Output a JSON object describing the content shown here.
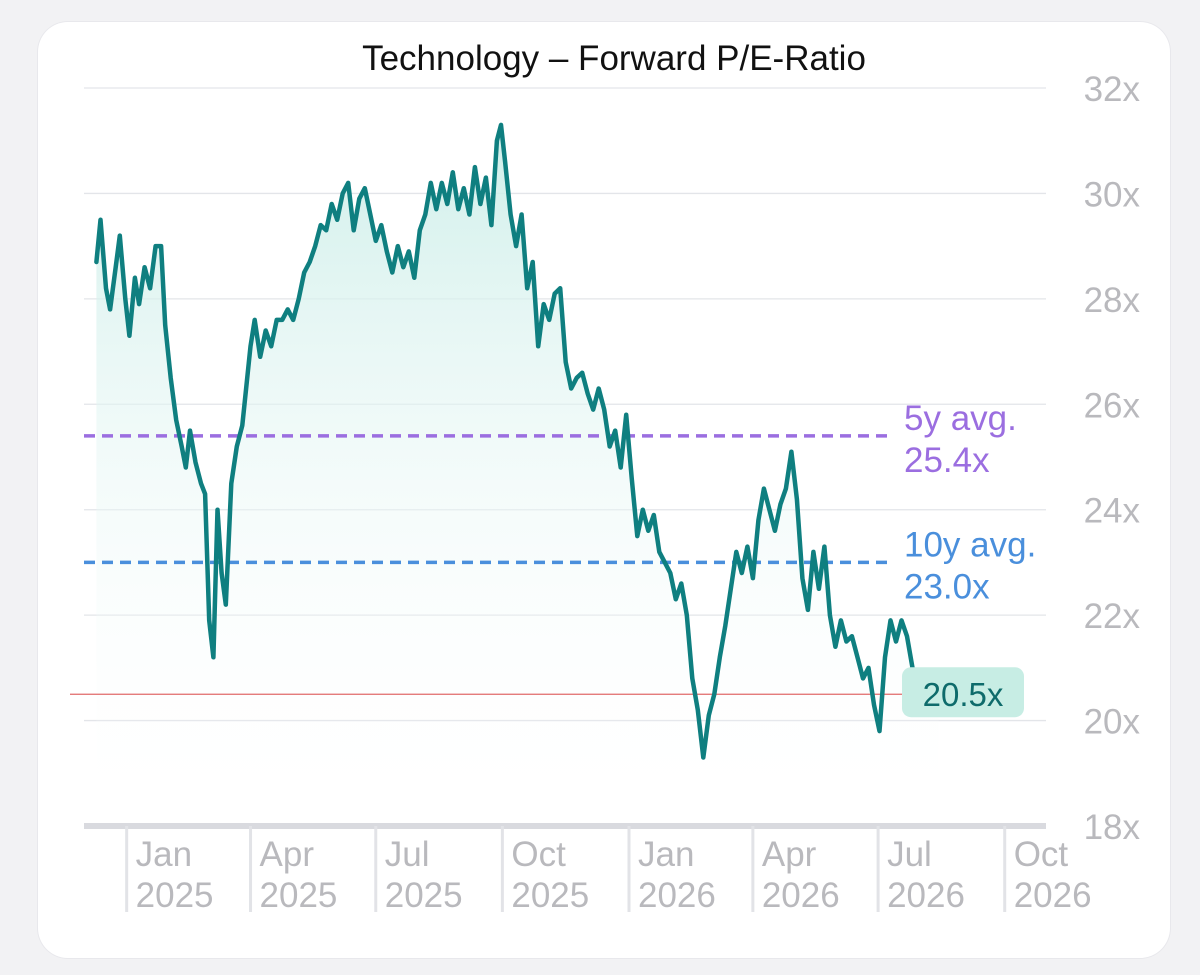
{
  "chart_data": {
    "type": "line",
    "title": "Technology – Forward P/E-Ratio",
    "y_ticks": [
      "32x",
      "30x",
      "28x",
      "26x",
      "24x",
      "22x",
      "20x",
      "18x"
    ],
    "y_tick_values": [
      32,
      30,
      28,
      26,
      24,
      22,
      20,
      18
    ],
    "ylim": [
      18,
      32
    ],
    "x_range": [
      "2024-12-01",
      "2026-10-31"
    ],
    "x_ticks": [
      {
        "date": "2025-01-01",
        "month": "Jan",
        "year": "2025"
      },
      {
        "date": "2025-04-01",
        "month": "Apr",
        "year": "2025"
      },
      {
        "date": "2025-07-01",
        "month": "Jul",
        "year": "2025"
      },
      {
        "date": "2025-10-01",
        "month": "Oct",
        "year": "2025"
      },
      {
        "date": "2026-01-01",
        "month": "Jan",
        "year": "2026"
      },
      {
        "date": "2026-04-01",
        "month": "Apr",
        "year": "2026"
      },
      {
        "date": "2026-07-01",
        "month": "Jul",
        "year": "2026"
      },
      {
        "date": "2026-10-01",
        "month": "Oct",
        "year": "2026"
      }
    ],
    "grid": true,
    "series": [
      {
        "color": "#0f7f80",
        "points": [
          [
            "2024-12-10",
            28.7
          ],
          [
            "2024-12-13",
            29.5
          ],
          [
            "2024-12-17",
            28.2
          ],
          [
            "2024-12-20",
            27.8
          ],
          [
            "2024-12-24",
            28.6
          ],
          [
            "2024-12-27",
            29.2
          ],
          [
            "2024-12-31",
            28.0
          ],
          [
            "2025-01-03",
            27.3
          ],
          [
            "2025-01-07",
            28.4
          ],
          [
            "2025-01-10",
            27.9
          ],
          [
            "2025-01-14",
            28.6
          ],
          [
            "2025-01-18",
            28.2
          ],
          [
            "2025-01-22",
            29.0
          ],
          [
            "2025-01-26",
            29.0
          ],
          [
            "2025-01-29",
            27.5
          ],
          [
            "2025-02-02",
            26.5
          ],
          [
            "2025-02-06",
            25.7
          ],
          [
            "2025-02-10",
            25.2
          ],
          [
            "2025-02-13",
            24.8
          ],
          [
            "2025-02-16",
            25.5
          ],
          [
            "2025-02-20",
            24.9
          ],
          [
            "2025-02-24",
            24.5
          ],
          [
            "2025-02-27",
            24.3
          ],
          [
            "2025-03-02",
            21.9
          ],
          [
            "2025-03-05",
            21.2
          ],
          [
            "2025-03-08",
            24.0
          ],
          [
            "2025-03-11",
            22.8
          ],
          [
            "2025-03-14",
            22.2
          ],
          [
            "2025-03-18",
            24.5
          ],
          [
            "2025-03-22",
            25.2
          ],
          [
            "2025-03-26",
            25.6
          ],
          [
            "2025-04-01",
            27.1
          ],
          [
            "2025-04-04",
            27.6
          ],
          [
            "2025-04-08",
            26.9
          ],
          [
            "2025-04-12",
            27.4
          ],
          [
            "2025-04-16",
            27.1
          ],
          [
            "2025-04-20",
            27.6
          ],
          [
            "2025-04-24",
            27.6
          ],
          [
            "2025-04-28",
            27.8
          ],
          [
            "2025-05-02",
            27.6
          ],
          [
            "2025-05-06",
            28.0
          ],
          [
            "2025-05-10",
            28.5
          ],
          [
            "2025-05-14",
            28.7
          ],
          [
            "2025-05-18",
            29.0
          ],
          [
            "2025-05-22",
            29.4
          ],
          [
            "2025-05-26",
            29.3
          ],
          [
            "2025-05-30",
            29.8
          ],
          [
            "2025-06-03",
            29.5
          ],
          [
            "2025-06-07",
            30.0
          ],
          [
            "2025-06-11",
            30.2
          ],
          [
            "2025-06-15",
            29.3
          ],
          [
            "2025-06-19",
            29.9
          ],
          [
            "2025-06-23",
            30.1
          ],
          [
            "2025-06-27",
            29.6
          ],
          [
            "2025-07-01",
            29.1
          ],
          [
            "2025-07-05",
            29.4
          ],
          [
            "2025-07-09",
            28.9
          ],
          [
            "2025-07-13",
            28.5
          ],
          [
            "2025-07-17",
            29.0
          ],
          [
            "2025-07-21",
            28.6
          ],
          [
            "2025-07-25",
            28.9
          ],
          [
            "2025-07-29",
            28.4
          ],
          [
            "2025-08-02",
            29.3
          ],
          [
            "2025-08-06",
            29.6
          ],
          [
            "2025-08-10",
            30.2
          ],
          [
            "2025-08-14",
            29.7
          ],
          [
            "2025-08-18",
            30.2
          ],
          [
            "2025-08-22",
            29.8
          ],
          [
            "2025-08-26",
            30.4
          ],
          [
            "2025-08-30",
            29.7
          ],
          [
            "2025-09-03",
            30.1
          ],
          [
            "2025-09-07",
            29.6
          ],
          [
            "2025-09-11",
            30.5
          ],
          [
            "2025-09-15",
            29.8
          ],
          [
            "2025-09-19",
            30.3
          ],
          [
            "2025-09-23",
            29.4
          ],
          [
            "2025-09-27",
            31.0
          ],
          [
            "2025-09-30",
            31.3
          ],
          [
            "2025-10-03",
            30.6
          ],
          [
            "2025-10-07",
            29.6
          ],
          [
            "2025-10-11",
            29.0
          ],
          [
            "2025-10-15",
            29.6
          ],
          [
            "2025-10-19",
            28.2
          ],
          [
            "2025-10-23",
            28.7
          ],
          [
            "2025-10-27",
            27.1
          ],
          [
            "2025-10-31",
            27.9
          ],
          [
            "2025-11-04",
            27.6
          ],
          [
            "2025-11-08",
            28.1
          ],
          [
            "2025-11-12",
            28.2
          ],
          [
            "2025-11-16",
            26.8
          ],
          [
            "2025-11-20",
            26.3
          ],
          [
            "2025-11-24",
            26.5
          ],
          [
            "2025-11-28",
            26.6
          ],
          [
            "2025-12-02",
            26.2
          ],
          [
            "2025-12-06",
            25.9
          ],
          [
            "2025-12-10",
            26.3
          ],
          [
            "2025-12-14",
            25.9
          ],
          [
            "2025-12-18",
            25.2
          ],
          [
            "2025-12-22",
            25.5
          ],
          [
            "2025-12-26",
            24.8
          ],
          [
            "2025-12-30",
            25.8
          ],
          [
            "2026-01-03",
            24.6
          ],
          [
            "2026-01-07",
            23.5
          ],
          [
            "2026-01-11",
            24.0
          ],
          [
            "2026-01-15",
            23.6
          ],
          [
            "2026-01-19",
            23.9
          ],
          [
            "2026-01-23",
            23.2
          ],
          [
            "2026-01-27",
            23.0
          ],
          [
            "2026-01-31",
            22.8
          ],
          [
            "2026-02-04",
            22.3
          ],
          [
            "2026-02-08",
            22.6
          ],
          [
            "2026-02-12",
            22.0
          ],
          [
            "2026-02-16",
            20.8
          ],
          [
            "2026-02-20",
            20.2
          ],
          [
            "2026-02-24",
            19.3
          ],
          [
            "2026-02-28",
            20.1
          ],
          [
            "2026-03-04",
            20.5
          ],
          [
            "2026-03-08",
            21.2
          ],
          [
            "2026-03-12",
            21.8
          ],
          [
            "2026-03-16",
            22.5
          ],
          [
            "2026-03-20",
            23.2
          ],
          [
            "2026-03-24",
            22.8
          ],
          [
            "2026-03-28",
            23.3
          ],
          [
            "2026-04-01",
            22.7
          ],
          [
            "2026-04-05",
            23.8
          ],
          [
            "2026-04-09",
            24.4
          ],
          [
            "2026-04-13",
            24.0
          ],
          [
            "2026-04-17",
            23.6
          ],
          [
            "2026-04-21",
            24.1
          ],
          [
            "2026-04-25",
            24.4
          ],
          [
            "2026-04-29",
            25.1
          ],
          [
            "2026-05-03",
            24.2
          ],
          [
            "2026-05-07",
            22.7
          ],
          [
            "2026-05-11",
            22.1
          ],
          [
            "2026-05-15",
            23.2
          ],
          [
            "2026-05-19",
            22.5
          ],
          [
            "2026-05-23",
            23.3
          ],
          [
            "2026-05-27",
            22.0
          ],
          [
            "2026-05-31",
            21.4
          ],
          [
            "2026-06-04",
            21.9
          ],
          [
            "2026-06-08",
            21.5
          ],
          [
            "2026-06-12",
            21.6
          ],
          [
            "2026-06-16",
            21.2
          ],
          [
            "2026-06-20",
            20.8
          ],
          [
            "2026-06-24",
            21.0
          ],
          [
            "2026-06-28",
            20.3
          ],
          [
            "2026-07-02",
            19.8
          ],
          [
            "2026-07-06",
            21.2
          ],
          [
            "2026-07-10",
            21.9
          ],
          [
            "2026-07-14",
            21.5
          ],
          [
            "2026-07-18",
            21.9
          ],
          [
            "2026-07-22",
            21.6
          ],
          [
            "2026-07-26",
            21.0
          ],
          [
            "2026-07-30",
            20.7
          ],
          [
            "2026-08-03",
            20.9
          ],
          [
            "2026-08-07",
            20.5
          ],
          [
            "2026-08-11",
            20.4
          ],
          [
            "2026-08-14",
            20.5
          ]
        ]
      }
    ],
    "reference_lines": [
      {
        "label": "5y avg.",
        "value_label": "25.4x",
        "value": 25.4,
        "color": "#9b6ee0"
      },
      {
        "label": "10y avg.",
        "value_label": "23.0x",
        "value": 23.0,
        "color": "#4a8fdc"
      }
    ],
    "last_value": {
      "label": "20.5x",
      "value": 20.5
    }
  }
}
